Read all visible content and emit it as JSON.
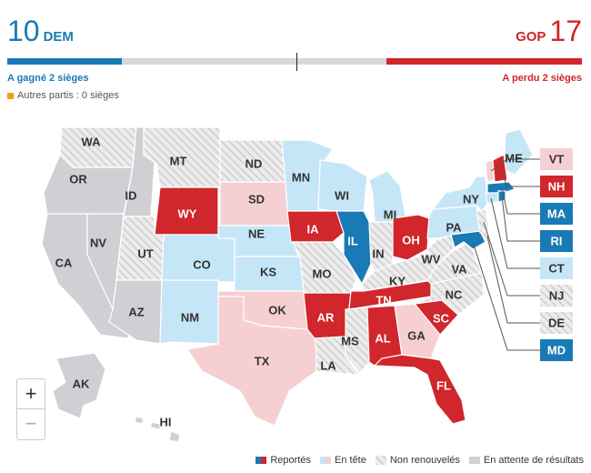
{
  "header": {
    "dem": {
      "count": "10",
      "label": "DEM",
      "sub": "A gagné 2 sièges"
    },
    "gop": {
      "count": "17",
      "label": "GOP",
      "sub": "A perdu 2 sièges"
    },
    "other_parties": "Autres partis : 0 sièges",
    "bar": {
      "dem_fraction": 0.2,
      "gop_fraction": 0.34
    }
  },
  "colors": {
    "dem_called": "#1a7ab5",
    "gop_called": "#d1262b",
    "dem_leading": "#c5e6f7",
    "gop_leading": "#f6cfd2",
    "not_up": "#e6e6e6",
    "awaiting": "#cfd0d4",
    "other_parties": "#f39c12"
  },
  "map": {
    "states": {
      "WA": "not_up",
      "OR": "awaiting",
      "ID": "awaiting",
      "MT": "not_up",
      "ND": "not_up",
      "SD": "gop_leading",
      "WY": "gop_called",
      "NE": "dem_leading",
      "CO": "dem_leading",
      "UT": "not_up",
      "NV": "awaiting",
      "CA": "awaiting",
      "AZ": "awaiting",
      "NM": "dem_leading",
      "KS": "dem_leading",
      "OK": "gop_leading",
      "TX": "gop_leading",
      "MN": "dem_leading",
      "IA": "gop_called",
      "MO": "not_up",
      "AR": "gop_called",
      "LA": "not_up",
      "WI": "dem_leading",
      "IL": "dem_called",
      "MI": "dem_leading",
      "IN": "not_up",
      "OH": "gop_called",
      "KY": "not_up",
      "TN": "gop_called",
      "MS": "not_up",
      "AL": "gop_called",
      "GA": "gop_leading",
      "FL": "gop_called",
      "SC": "gop_called",
      "NC": "not_up",
      "VA": "not_up",
      "WV": "not_up",
      "PA": "dem_leading",
      "NY": "dem_leading",
      "ME": "dem_leading",
      "VT": "gop_leading",
      "NH": "gop_called",
      "MA": "dem_called",
      "RI": "dem_called",
      "CT": "dem_leading",
      "NJ": "not_up",
      "DE": "not_up",
      "MD": "dem_called",
      "AK": "awaiting",
      "HI": "awaiting"
    }
  },
  "zoom": {
    "in": "+",
    "out": "−"
  },
  "legend": {
    "called": "Reportés",
    "leading": "En tête",
    "not_up": "Non renouvelés",
    "awaiting": "En attente de résultats"
  }
}
